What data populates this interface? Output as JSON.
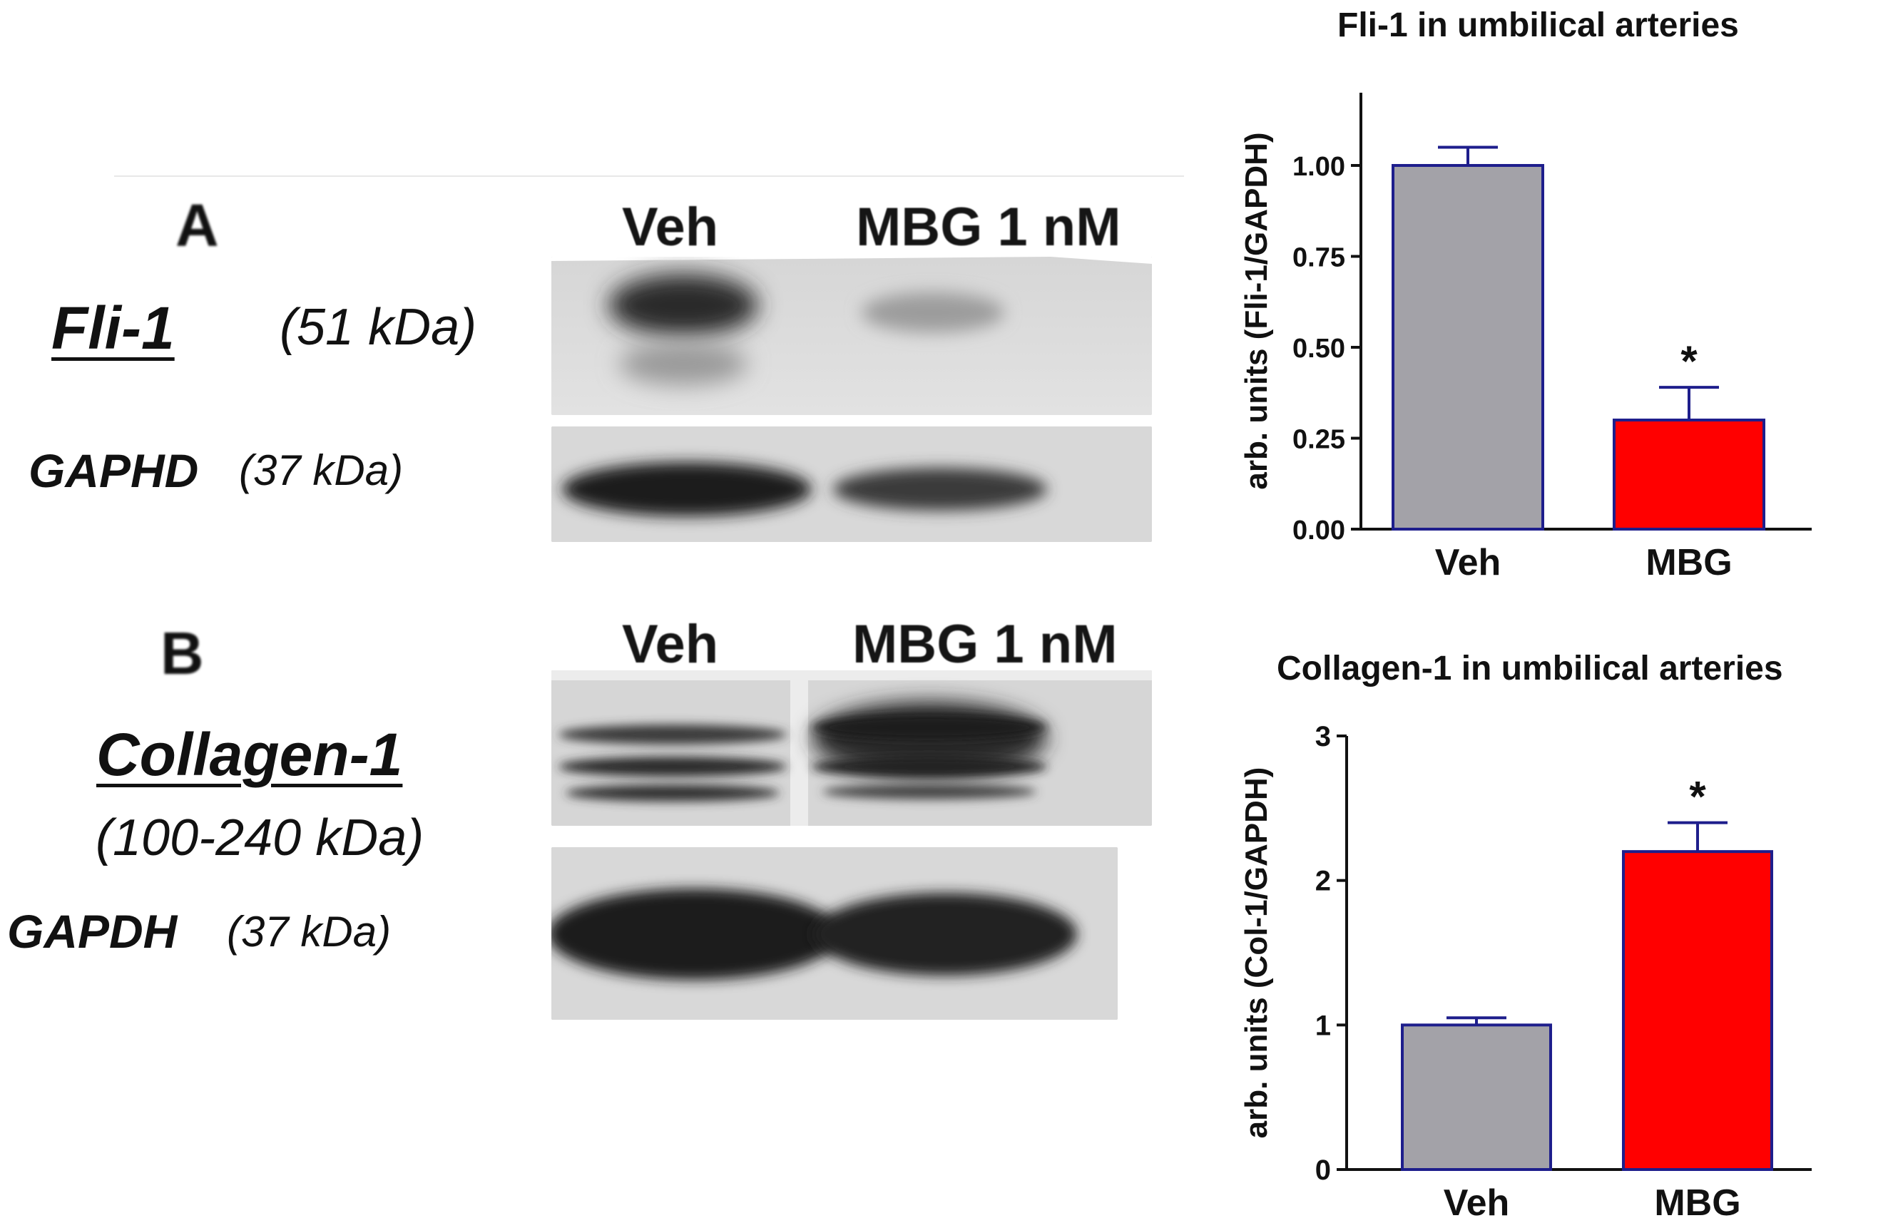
{
  "panel_a": {
    "letter": "A",
    "protein": "Fli-1",
    "protein_kda": "(51 kDa)",
    "loading": "GAPHD",
    "loading_kda": "(37 kDa)",
    "lanes": [
      "Veh",
      "MBG 1 nM"
    ]
  },
  "panel_b": {
    "letter": "B",
    "protein": "Collagen-1",
    "protein_kda": "(100-240 kDa)",
    "loading": "GAPDH",
    "loading_kda": "(37 kDa)",
    "lanes": [
      "Veh",
      "MBG 1 nM"
    ]
  },
  "colors": {
    "veh_bar": "#a3a2a8",
    "mbg_bar": "#ff0000",
    "bar_edge": "#1e1e8c",
    "axis": "#111111"
  },
  "chart_data": [
    {
      "type": "bar",
      "title": "Fli-1 in umbilical arteries",
      "ylabel": "arb. units (Fli-1/GAPDH)",
      "categories": [
        "Veh",
        "MBG"
      ],
      "values": [
        1.0,
        0.3
      ],
      "errors": [
        0.05,
        0.09
      ],
      "significance": [
        "",
        "*"
      ],
      "ylim": [
        0,
        1.2
      ],
      "yticks": [
        0.0,
        0.25,
        0.5,
        0.75,
        1.0
      ],
      "ytick_labels": [
        "0.00",
        "0.25",
        "0.50",
        "0.75",
        "1.00"
      ]
    },
    {
      "type": "bar",
      "title": "Collagen-1 in umbilical arteries",
      "ylabel": "arb. units (Col-1/GAPDH)",
      "categories": [
        "Veh",
        "MBG"
      ],
      "values": [
        1.0,
        2.2
      ],
      "errors": [
        0.05,
        0.2
      ],
      "significance": [
        "",
        "*"
      ],
      "ylim": [
        0,
        3
      ],
      "yticks": [
        0,
        1,
        2,
        3
      ],
      "ytick_labels": [
        "0",
        "1",
        "2",
        "3"
      ]
    }
  ]
}
